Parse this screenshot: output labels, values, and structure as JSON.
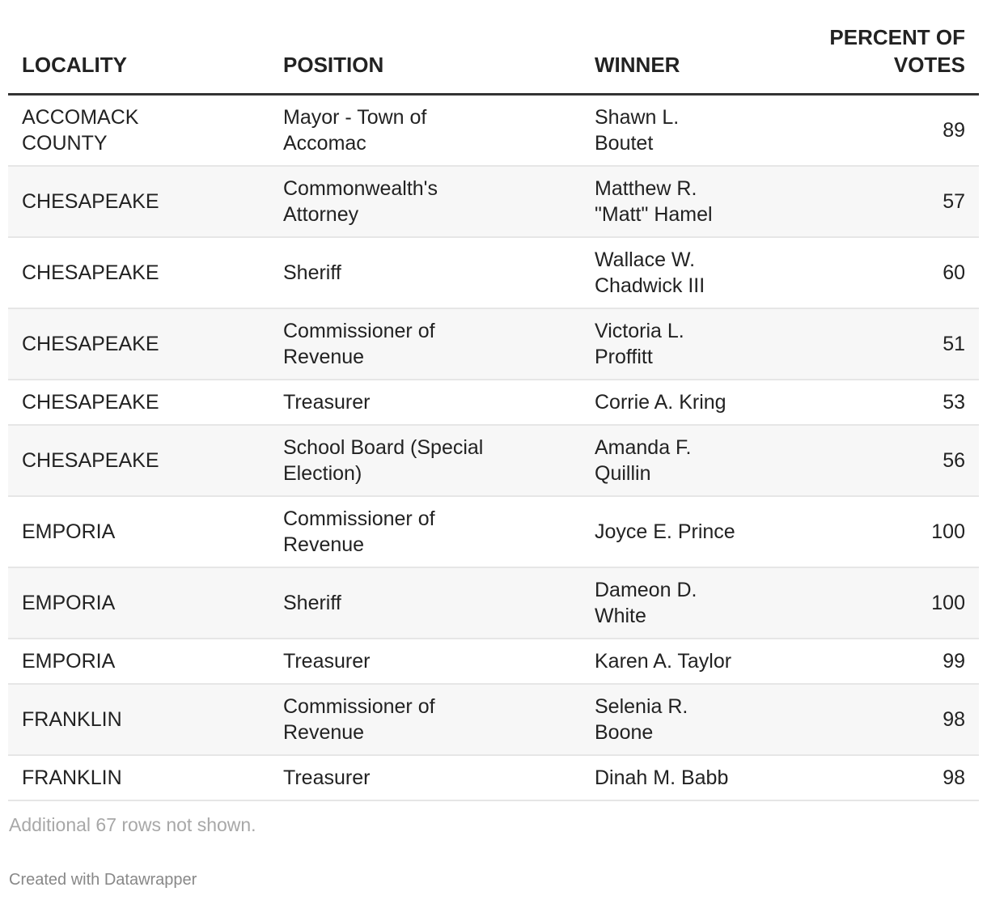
{
  "table": {
    "columns": [
      "LOCALITY",
      "POSITION",
      "WINNER",
      "PERCENT OF\nVOTES"
    ],
    "rows": [
      {
        "locality": "ACCOMACK\nCOUNTY",
        "position": "Mayor - Town of\nAccomac",
        "winner": "Shawn L.\nBoutet",
        "percent": "89"
      },
      {
        "locality": "CHESAPEAKE",
        "position": "Commonwealth's\nAttorney",
        "winner": "Matthew R.\n\"Matt\" Hamel",
        "percent": "57"
      },
      {
        "locality": "CHESAPEAKE",
        "position": "Sheriff",
        "winner": "Wallace W.\nChadwick III",
        "percent": "60"
      },
      {
        "locality": "CHESAPEAKE",
        "position": "Commissioner of\nRevenue",
        "winner": "Victoria L.\nProffitt",
        "percent": "51"
      },
      {
        "locality": "CHESAPEAKE",
        "position": "Treasurer",
        "winner": "Corrie A. Kring",
        "percent": "53"
      },
      {
        "locality": "CHESAPEAKE",
        "position": "School Board (Special\nElection)",
        "winner": "Amanda F.\nQuillin",
        "percent": "56"
      },
      {
        "locality": "EMPORIA",
        "position": "Commissioner of\nRevenue",
        "winner": "Joyce E. Prince",
        "percent": "100"
      },
      {
        "locality": "EMPORIA",
        "position": "Sheriff",
        "winner": "Dameon D.\nWhite",
        "percent": "100"
      },
      {
        "locality": "EMPORIA",
        "position": "Treasurer",
        "winner": "Karen A. Taylor",
        "percent": "99"
      },
      {
        "locality": "FRANKLIN",
        "position": "Commissioner of\nRevenue",
        "winner": "Selenia R.\nBoone",
        "percent": "98"
      },
      {
        "locality": "FRANKLIN",
        "position": "Treasurer",
        "winner": "Dinah M. Babb",
        "percent": "98"
      }
    ]
  },
  "notes": "Additional 67 rows not shown.",
  "credit": "Created with Datawrapper",
  "colors": {
    "header_rule": "#333333",
    "row_alt": "#f7f7f7",
    "row_rule": "#e6e6e6"
  }
}
